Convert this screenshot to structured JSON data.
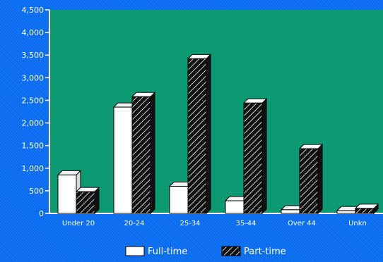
{
  "colors": {
    "background": "#0a6df0",
    "plot_area": "#0c9a72",
    "axis": "#ffffff",
    "fulltime_fill": "#ffffff",
    "parttime_fill": "#111111"
  },
  "chart_data": {
    "type": "bar",
    "categories": [
      "Under 20",
      "20-24",
      "25-34",
      "35-44",
      "Over 44",
      "Unkn"
    ],
    "series": [
      {
        "name": "Full-time",
        "values": [
          850,
          2350,
          600,
          280,
          80,
          60
        ]
      },
      {
        "name": "Part-time",
        "values": [
          480,
          2580,
          3420,
          2440,
          1430,
          110
        ]
      }
    ],
    "yticks": [
      "0",
      "500",
      "1,000",
      "1,500",
      "2,000",
      "2,500",
      "3,000",
      "3,500",
      "4,000",
      "4,500"
    ],
    "ylim": [
      0,
      4500
    ],
    "grid": false,
    "legend": "bottom",
    "title": "",
    "xlabel": "",
    "ylabel": ""
  }
}
